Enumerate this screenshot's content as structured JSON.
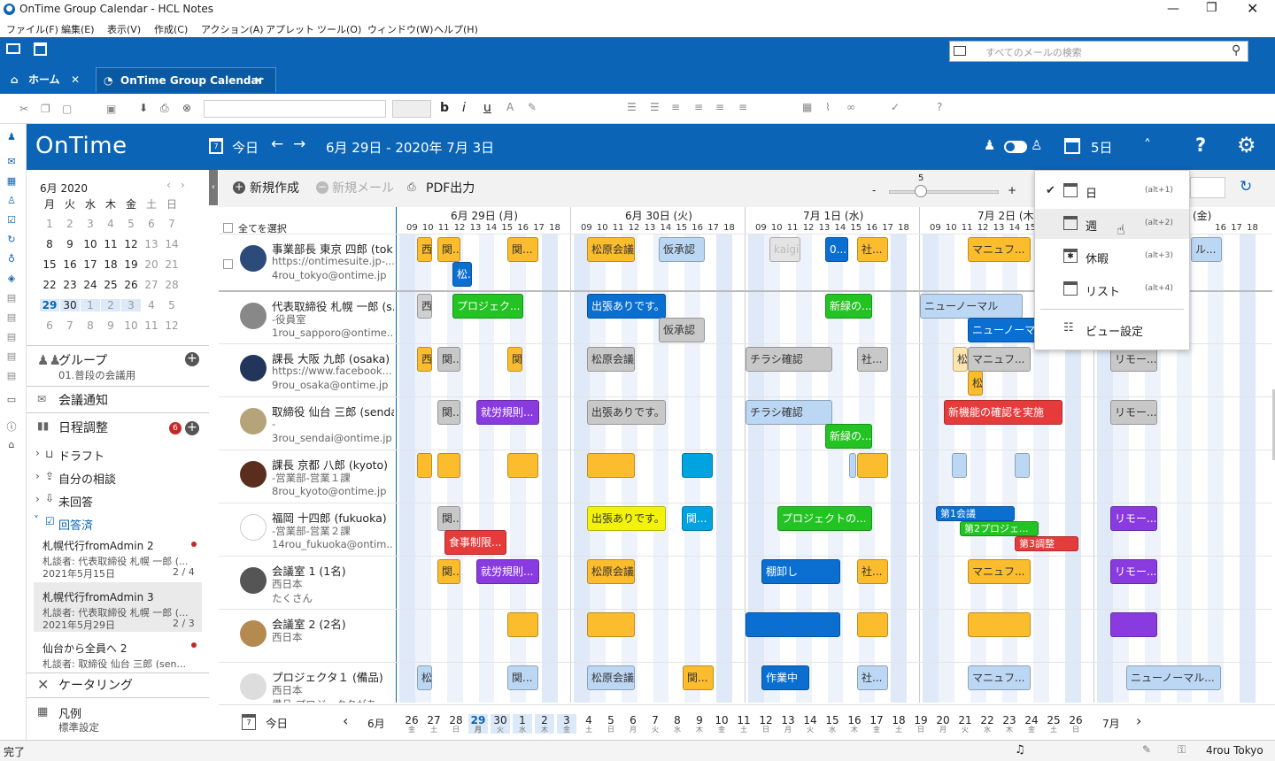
{
  "window": {
    "title": "OnTime Group Calendar - HCL Notes"
  },
  "menu": [
    "ファイル(F)",
    "編集(E)",
    "表示(V)",
    "作成(C)",
    "アクション(A)",
    "アプレット",
    "ツール(O)",
    "ウィンドウ(W)",
    "ヘルプ(H)"
  ],
  "search": {
    "placeholder": "すべてのメールの検索"
  },
  "tabs": [
    {
      "label": "ホーム"
    },
    {
      "label": "OnTime Group Calendar"
    }
  ],
  "header": {
    "logo": "OnTime",
    "today": "今日",
    "range": "6月 29日 - 2020年 7月 3日",
    "view_days": "5日"
  },
  "actions": {
    "new": "新規作成",
    "new_mail": "新規メール",
    "pdf": "PDF出力",
    "zoom_value": "5",
    "select_all": "全てを選択"
  },
  "mini_calendar": {
    "title": "6月 2020",
    "weekdays": [
      "月",
      "火",
      "水",
      "木",
      "金",
      "土",
      "日"
    ],
    "weeks": [
      [
        "1",
        "2",
        "3",
        "4",
        "5",
        "6",
        "7"
      ],
      [
        "8",
        "9",
        "10",
        "11",
        "12",
        "13",
        "14"
      ],
      [
        "15",
        "16",
        "17",
        "18",
        "19",
        "20",
        "21"
      ],
      [
        "22",
        "23",
        "24",
        "25",
        "26",
        "27",
        "28"
      ],
      [
        "29",
        "30",
        "1",
        "2",
        "3",
        "4",
        "5"
      ],
      [
        "6",
        "7",
        "8",
        "9",
        "10",
        "11",
        "12"
      ]
    ]
  },
  "sidebar": {
    "group": "グループ",
    "group_sub": "01.普段の会議用",
    "notify": "会議通知",
    "schedule": "日程調整",
    "schedule_badge": "6",
    "draft": "ドラフト",
    "mine": "自分の相談",
    "unanswered": "未回答",
    "answered": "回答済",
    "items": [
      {
        "title": "札幌代行fromAdmin 2",
        "sub": "札談者: 代表取締役 札幌 一郎 (...",
        "date": "2021年5月15日",
        "count": "2 / 4"
      },
      {
        "title": "札幌代行fromAdmin 3",
        "sub": "札談者: 代表取締役 札幌 一郎 (...",
        "date": "2021年5月29日",
        "count": "2 / 3"
      },
      {
        "title": "仙台から全員へ 2",
        "sub": "札談者: 取締役 仙台 三郎 (sen..."
      }
    ],
    "catering": "ケータリング",
    "legend": "凡例",
    "legend_sub": "標準設定"
  },
  "days": [
    {
      "label": "6月 29日 (月)"
    },
    {
      "label": "6月 30日 (火)"
    },
    {
      "label": "7月 1日 (水)"
    },
    {
      "label": "7月 2日 (木)"
    },
    {
      "label": "(金)"
    }
  ],
  "hours": [
    "09",
    "10",
    "11",
    "12",
    "13",
    "14",
    "15",
    "16",
    "17",
    "18"
  ],
  "people": [
    {
      "name": "事業部長 東京 四郎 (tok...",
      "line2": "https://ontimesuite.jp-...",
      "line3": "4rou_tokyo@ontime.jp"
    },
    {
      "name": "代表取締役 札幌 一郎 (s...",
      "line2": "-役員室",
      "line3": "1rou_sapporo@ontime..."
    },
    {
      "name": "課長 大阪 九郎 (osaka)",
      "line2": "https://www.facebook...",
      "line3": "9rou_osaka@ontime.jp"
    },
    {
      "name": "取締役 仙台 三郎 (sendai)",
      "line2": "-",
      "line3": "3rou_sendai@ontime.jp"
    },
    {
      "name": "課長 京都 八郎 (kyoto)",
      "line2": "-営業部-営業１課",
      "line3": "8rou_kyoto@ontime.jp"
    },
    {
      "name": "福岡 十四郎 (fukuoka)",
      "line2": "-営業部-営業２課",
      "line3": "14rou_fukuoka@ontim..."
    },
    {
      "name": "会議室 1 (1名)",
      "line2": "西日本",
      "line3": "たくさん"
    },
    {
      "name": "会議室 2 (2名)",
      "line2": "西日本",
      "line3": ""
    },
    {
      "name": "プロジェクタ１ (備品)",
      "line2": "西日本",
      "line3": "備品 プロジェクタがあ..."
    }
  ],
  "events": [
    {
      "row": 0,
      "x": 224,
      "w": 17,
      "t": "西",
      "c": "#fbbc2d"
    },
    {
      "row": 0,
      "x": 247,
      "w": 26,
      "t": "関...",
      "c": "#fbbc2d"
    },
    {
      "row": 0,
      "x": 326,
      "w": 35,
      "t": "関...",
      "c": "#fbbc2d"
    },
    {
      "row": 0,
      "x": 416,
      "w": 54,
      "t": "松原会議",
      "c": "#fbbc2d"
    },
    {
      "row": 0,
      "x": 497,
      "w": 52,
      "t": "仮承認",
      "c": "#bcd7f4"
    },
    {
      "row": 0,
      "x": 622,
      "w": 35,
      "t": "kaigi",
      "c": "#e4e4e4"
    },
    {
      "row": 0,
      "x": 685,
      "w": 26,
      "t": "0...",
      "c": "#0a6fd1"
    },
    {
      "row": 0,
      "x": 721,
      "w": 35,
      "t": "社...",
      "c": "#fbbc2d"
    },
    {
      "row": 0,
      "x": 846,
      "w": 71,
      "t": "マニュフ...",
      "c": "#fbbc2d"
    },
    {
      "row": 0,
      "x": 1098,
      "w": 35,
      "t": "ル...",
      "c": "#bcd7f4"
    },
    {
      "row": 0,
      "x": 264,
      "w": 22,
      "t": "松...",
      "c": "#0a6fd1",
      "dy": 28
    },
    {
      "row": 1,
      "x": 224,
      "w": 17,
      "t": "西",
      "c": "#d0d0d0"
    },
    {
      "row": 1,
      "x": 264,
      "w": 80,
      "t": "プロジェク...",
      "c": "#22c322"
    },
    {
      "row": 1,
      "x": 416,
      "w": 89,
      "t": "出張ありです。",
      "c": "#0a6fd1"
    },
    {
      "row": 1,
      "x": 685,
      "w": 53,
      "t": "新緑の...",
      "c": "#22c322"
    },
    {
      "row": 1,
      "x": 792,
      "w": 116,
      "t": "ニューノーマル",
      "c": "#bcd7f4"
    },
    {
      "row": 1,
      "x": 497,
      "w": 52,
      "t": "仮承認",
      "c": "#c8c8c8",
      "dy": 27
    },
    {
      "row": 1,
      "x": 846,
      "w": 80,
      "t": "ニューノーマ...",
      "c": "#0a6fd1",
      "dy": 27
    },
    {
      "row": 2,
      "x": 224,
      "w": 17,
      "t": "西",
      "c": "#fbbc2d"
    },
    {
      "row": 2,
      "x": 247,
      "w": 26,
      "t": "関...",
      "c": "#c8c8c8"
    },
    {
      "row": 2,
      "x": 326,
      "w": 17,
      "t": "関",
      "c": "#fbbc2d"
    },
    {
      "row": 2,
      "x": 416,
      "w": 54,
      "t": "松原会議",
      "c": "#c8c8c8"
    },
    {
      "row": 2,
      "x": 595,
      "w": 98,
      "t": "チラシ確認",
      "c": "#c8c8c8"
    },
    {
      "row": 2,
      "x": 721,
      "w": 35,
      "t": "社...",
      "c": "#c8c8c8"
    },
    {
      "row": 2,
      "x": 829,
      "w": 17,
      "t": "松",
      "c": "#fde5b0"
    },
    {
      "row": 2,
      "x": 846,
      "w": 71,
      "t": "マニュフ...",
      "c": "#c8c8c8"
    },
    {
      "row": 2,
      "x": 1007,
      "w": 53,
      "t": "リモー...",
      "c": "#c8c8c8"
    },
    {
      "row": 2,
      "x": 846,
      "w": 17,
      "t": "松",
      "c": "#fbbc2d",
      "dy": 27
    },
    {
      "row": 3,
      "x": 247,
      "w": 26,
      "t": "関...",
      "c": "#c8c8c8"
    },
    {
      "row": 3,
      "x": 291,
      "w": 71,
      "t": "就労規則...",
      "c": "#8a3be0"
    },
    {
      "row": 3,
      "x": 416,
      "w": 89,
      "t": "出張ありです。",
      "c": "#c8c8c8"
    },
    {
      "row": 3,
      "x": 595,
      "w": 98,
      "t": "チラシ確認",
      "c": "#bcd7f4"
    },
    {
      "row": 3,
      "x": 819,
      "w": 134,
      "t": "新機能の確認を実施",
      "c": "#e63b3b"
    },
    {
      "row": 3,
      "x": 1007,
      "w": 53,
      "t": "リモー...",
      "c": "#c8c8c8"
    },
    {
      "row": 3,
      "x": 685,
      "w": 53,
      "t": "新緑の...",
      "c": "#22c322",
      "dy": 27
    },
    {
      "row": 4,
      "x": 224,
      "w": 17,
      "t": "",
      "c": "#fbbc2d"
    },
    {
      "row": 4,
      "x": 247,
      "w": 26,
      "t": "",
      "c": "#fbbc2d"
    },
    {
      "row": 4,
      "x": 326,
      "w": 35,
      "t": "",
      "c": "#fbbc2d"
    },
    {
      "row": 4,
      "x": 416,
      "w": 54,
      "t": "",
      "c": "#fbbc2d"
    },
    {
      "row": 4,
      "x": 523,
      "w": 35,
      "t": "",
      "c": "#00a3e0"
    },
    {
      "row": 4,
      "x": 712,
      "w": 8,
      "t": "",
      "c": "#bcd7f4"
    },
    {
      "row": 4,
      "x": 721,
      "w": 35,
      "t": "",
      "c": "#fbbc2d"
    },
    {
      "row": 4,
      "x": 828,
      "w": 17,
      "t": "",
      "c": "#bcd7f4"
    },
    {
      "row": 4,
      "x": 899,
      "w": 17,
      "t": "",
      "c": "#bcd7f4"
    },
    {
      "row": 5,
      "x": 247,
      "w": 26,
      "t": "関...",
      "c": "#c8c8c8"
    },
    {
      "row": 5,
      "x": 416,
      "w": 89,
      "t": "出張ありです。",
      "c": "#f2f20a"
    },
    {
      "row": 5,
      "x": 523,
      "w": 35,
      "t": "関...",
      "c": "#00a3e0"
    },
    {
      "row": 5,
      "x": 631,
      "w": 107,
      "t": "プロジェクトの...",
      "c": "#22c322"
    },
    {
      "row": 5,
      "x": 810,
      "w": 89,
      "t": "第1会議",
      "c": "#0a6fd1",
      "h": 17
    },
    {
      "row": 5,
      "x": 1007,
      "w": 53,
      "t": "リモー...",
      "c": "#8a3be0"
    },
    {
      "row": 5,
      "x": 255,
      "w": 70,
      "t": "食事制限...",
      "c": "#e63b3b",
      "dy": 27
    },
    {
      "row": 5,
      "x": 837,
      "w": 89,
      "t": "第2プロジェ...",
      "c": "#22c322",
      "h": 17,
      "dy": 17
    },
    {
      "row": 5,
      "x": 899,
      "w": 72,
      "t": "第3調整",
      "c": "#e63b3b",
      "h": 17,
      "dy": 34
    },
    {
      "row": 6,
      "x": 247,
      "w": 26,
      "t": "関...",
      "c": "#fbbc2d"
    },
    {
      "row": 6,
      "x": 291,
      "w": 71,
      "t": "就労規則...",
      "c": "#8a3be0"
    },
    {
      "row": 6,
      "x": 416,
      "w": 54,
      "t": "松原会議",
      "c": "#fbbc2d"
    },
    {
      "row": 6,
      "x": 613,
      "w": 89,
      "t": "棚卸し",
      "c": "#0a6fd1"
    },
    {
      "row": 6,
      "x": 721,
      "w": 35,
      "t": "社...",
      "c": "#fbbc2d"
    },
    {
      "row": 6,
      "x": 846,
      "w": 71,
      "t": "マニュフ...",
      "c": "#fbbc2d"
    },
    {
      "row": 6,
      "x": 1007,
      "w": 53,
      "t": "リモー...",
      "c": "#8a3be0"
    },
    {
      "row": 7,
      "x": 326,
      "w": 35,
      "t": "",
      "c": "#fbbc2d"
    },
    {
      "row": 7,
      "x": 416,
      "w": 54,
      "t": "",
      "c": "#fbbc2d"
    },
    {
      "row": 7,
      "x": 595,
      "w": 107,
      "t": "",
      "c": "#0a6fd1"
    },
    {
      "row": 7,
      "x": 721,
      "w": 35,
      "t": "",
      "c": "#fbbc2d"
    },
    {
      "row": 7,
      "x": 846,
      "w": 71,
      "t": "",
      "c": "#fbbc2d"
    },
    {
      "row": 7,
      "x": 1007,
      "w": 53,
      "t": "",
      "c": "#8a3be0"
    },
    {
      "row": 8,
      "x": 224,
      "w": 17,
      "t": "松",
      "c": "#bcd7f4"
    },
    {
      "row": 8,
      "x": 326,
      "w": 35,
      "t": "関...",
      "c": "#bcd7f4"
    },
    {
      "row": 8,
      "x": 416,
      "w": 54,
      "t": "松原会議",
      "c": "#bcd7f4"
    },
    {
      "row": 8,
      "x": 524,
      "w": 35,
      "t": "関...",
      "c": "#fbbc2d"
    },
    {
      "row": 8,
      "x": 613,
      "w": 54,
      "t": "作業中",
      "c": "#0a6fd1"
    },
    {
      "row": 8,
      "x": 721,
      "w": 35,
      "t": "社...",
      "c": "#bcd7f4"
    },
    {
      "row": 8,
      "x": 846,
      "w": 71,
      "t": "マニュフ...",
      "c": "#bcd7f4"
    },
    {
      "row": 8,
      "x": 1025,
      "w": 107,
      "t": "ニューノーマル...",
      "c": "#bcd7f4"
    }
  ],
  "bottom": {
    "today": "今日",
    "month_left": "6月",
    "month_right": "7月",
    "dates": [
      {
        "d": "26",
        "w": "金"
      },
      {
        "d": "27",
        "w": "土"
      },
      {
        "d": "28",
        "w": "日"
      },
      {
        "d": "29",
        "w": "月"
      },
      {
        "d": "30",
        "w": "火"
      },
      {
        "d": "1",
        "w": "水"
      },
      {
        "d": "2",
        "w": "木"
      },
      {
        "d": "3",
        "w": "金"
      },
      {
        "d": "4",
        "w": "土"
      },
      {
        "d": "5",
        "w": "日"
      },
      {
        "d": "6",
        "w": "月"
      },
      {
        "d": "7",
        "w": "火"
      },
      {
        "d": "8",
        "w": "水"
      },
      {
        "d": "9",
        "w": "木"
      },
      {
        "d": "10",
        "w": "金"
      },
      {
        "d": "11",
        "w": "土"
      },
      {
        "d": "12",
        "w": "日"
      },
      {
        "d": "13",
        "w": "月"
      },
      {
        "d": "14",
        "w": "火"
      },
      {
        "d": "15",
        "w": "水"
      },
      {
        "d": "16",
        "w": "木"
      },
      {
        "d": "17",
        "w": "金"
      },
      {
        "d": "18",
        "w": "土"
      },
      {
        "d": "19",
        "w": "日"
      },
      {
        "d": "20",
        "w": "月"
      },
      {
        "d": "21",
        "w": "火"
      },
      {
        "d": "22",
        "w": "水"
      },
      {
        "d": "23",
        "w": "木"
      },
      {
        "d": "24",
        "w": "金"
      },
      {
        "d": "25",
        "w": "土"
      },
      {
        "d": "26",
        "w": "日"
      }
    ]
  },
  "popup": {
    "items": [
      {
        "label": "日",
        "key": "(alt+1)"
      },
      {
        "label": "週",
        "key": "(alt+2)"
      },
      {
        "label": "休暇",
        "key": "(alt+3)"
      },
      {
        "label": "リスト",
        "key": "(alt+4)"
      }
    ],
    "settings": "ビュー設定"
  },
  "status": {
    "left": "完了",
    "user": "4rou Tokyo"
  }
}
